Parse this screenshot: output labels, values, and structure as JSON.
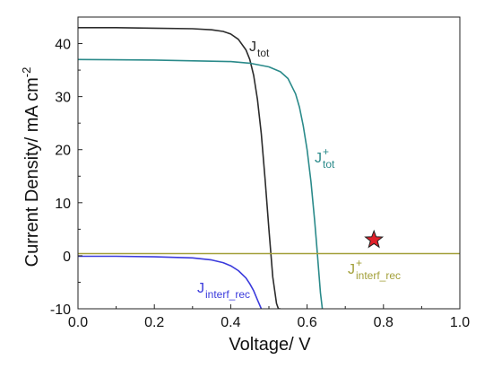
{
  "chart_data": {
    "type": "line",
    "xlabel": "Voltage/ V",
    "ylabel": "Current Density/ mA cm",
    "ylabel_sup": "-2",
    "xlim": [
      0.0,
      1.0
    ],
    "ylim": [
      -10,
      45
    ],
    "x_ticks": [
      "0.0",
      "0.2",
      "0.4",
      "0.6",
      "0.8",
      "1.0"
    ],
    "y_ticks": [
      "-10",
      "0",
      "10",
      "20",
      "30",
      "40"
    ],
    "grid": false,
    "legend": "none",
    "series": [
      {
        "label_main": "J",
        "label_sup": "",
        "label_sub": "tot",
        "color": "#2b2b2b",
        "x": [
          0.0,
          0.1,
          0.2,
          0.3,
          0.35,
          0.38,
          0.4,
          0.42,
          0.44,
          0.45,
          0.46,
          0.47,
          0.48,
          0.49,
          0.5,
          0.51,
          0.52,
          0.525,
          0.53
        ],
        "y": [
          43.0,
          43.0,
          42.9,
          42.8,
          42.6,
          42.3,
          41.8,
          40.8,
          38.8,
          37.0,
          34.0,
          29.5,
          23.0,
          14.5,
          5.0,
          -4.0,
          -9.0,
          -10.0,
          -10.0
        ]
      },
      {
        "label_main": "J",
        "label_sup": "+",
        "label_sub": "tot",
        "color": "#2a8a8a",
        "x": [
          0.0,
          0.2,
          0.4,
          0.45,
          0.5,
          0.53,
          0.55,
          0.57,
          0.58,
          0.59,
          0.6,
          0.61,
          0.62,
          0.625,
          0.63,
          0.635,
          0.64
        ],
        "y": [
          37.0,
          36.9,
          36.6,
          36.3,
          35.6,
          34.7,
          33.4,
          30.5,
          28.0,
          24.5,
          20.0,
          14.0,
          6.5,
          2.0,
          -2.5,
          -7.0,
          -10.0
        ]
      },
      {
        "label_main": "J",
        "label_sup": "",
        "label_sub": "interf_rec",
        "color": "#3a3adc",
        "x": [
          0.0,
          0.1,
          0.2,
          0.3,
          0.35,
          0.38,
          0.4,
          0.42,
          0.44,
          0.45,
          0.46,
          0.47,
          0.48
        ],
        "y": [
          -0.1,
          -0.1,
          -0.2,
          -0.4,
          -0.8,
          -1.3,
          -1.9,
          -2.8,
          -4.2,
          -5.3,
          -6.6,
          -8.3,
          -10.0
        ]
      },
      {
        "label_main": "J",
        "label_sup": "+",
        "label_sub": "interf_rec",
        "color": "#a3a03a",
        "x": [
          0.0,
          1.0
        ],
        "y": [
          0.4,
          0.4
        ]
      }
    ],
    "markers": [
      {
        "shape": "star",
        "x": 0.775,
        "y": 3.0,
        "fill": "#e0202a",
        "stroke": "#222222"
      }
    ]
  }
}
